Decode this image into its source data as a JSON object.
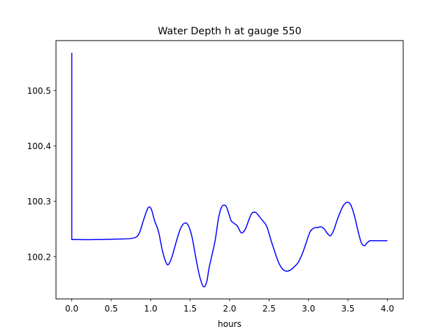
{
  "chart_data": {
    "type": "line",
    "title": "Water Depth h at gauge 550",
    "xlabel": "hours",
    "ylabel": "",
    "xlim": [
      -0.2,
      4.2
    ],
    "ylim": [
      100.124,
      100.59
    ],
    "xticks": [
      0.0,
      0.5,
      1.0,
      1.5,
      2.0,
      2.5,
      3.0,
      3.5,
      4.0
    ],
    "xtick_labels": [
      "0.0",
      "0.5",
      "1.0",
      "1.5",
      "2.0",
      "2.5",
      "3.0",
      "3.5",
      "4.0"
    ],
    "yticks": [
      100.2,
      100.3,
      100.4,
      100.5
    ],
    "ytick_labels": [
      "100.2",
      "100.3",
      "100.4",
      "100.5"
    ],
    "grid": false,
    "series": [
      {
        "color": "#0000ff",
        "x": [
          0.0,
          0.0,
          0.3,
          0.6,
          0.75,
          0.82,
          0.86,
          0.9,
          0.95,
          0.98,
          1.01,
          1.05,
          1.1,
          1.15,
          1.2,
          1.23,
          1.27,
          1.32,
          1.37,
          1.42,
          1.47,
          1.52,
          1.57,
          1.62,
          1.67,
          1.71,
          1.74,
          1.78,
          1.82,
          1.86,
          1.9,
          1.95,
          1.99,
          2.02,
          2.06,
          2.1,
          2.15,
          2.2,
          2.24,
          2.28,
          2.33,
          2.38,
          2.42,
          2.47,
          2.52,
          2.57,
          2.62,
          2.67,
          2.72,
          2.77,
          2.82,
          2.87,
          2.92,
          2.97,
          3.02,
          3.07,
          3.12,
          3.16,
          3.2,
          3.24,
          3.28,
          3.32,
          3.36,
          3.4,
          3.44,
          3.48,
          3.53,
          3.58,
          3.63,
          3.67,
          3.71,
          3.74,
          3.78,
          3.82,
          3.86,
          3.9,
          3.94,
          3.97,
          4.0
        ],
        "y": [
          100.568,
          100.231,
          100.231,
          100.232,
          100.233,
          100.236,
          100.244,
          100.262,
          100.283,
          100.29,
          100.285,
          100.265,
          100.245,
          100.21,
          100.188,
          100.187,
          100.2,
          100.225,
          100.248,
          100.26,
          100.258,
          100.238,
          100.2,
          100.165,
          100.146,
          100.155,
          100.18,
          100.205,
          100.232,
          100.27,
          100.29,
          100.292,
          100.278,
          100.265,
          100.26,
          100.255,
          100.243,
          100.25,
          100.265,
          100.278,
          100.28,
          100.272,
          100.265,
          100.255,
          100.232,
          100.21,
          100.19,
          100.178,
          100.174,
          100.176,
          100.182,
          100.19,
          100.205,
          100.225,
          100.245,
          100.252,
          100.253,
          100.254,
          100.25,
          100.242,
          100.238,
          100.248,
          100.265,
          100.28,
          100.292,
          100.298,
          100.295,
          100.275,
          100.245,
          100.225,
          100.22,
          100.225,
          100.229,
          100.229,
          100.229,
          100.229,
          100.229,
          100.229,
          100.229
        ]
      }
    ]
  }
}
